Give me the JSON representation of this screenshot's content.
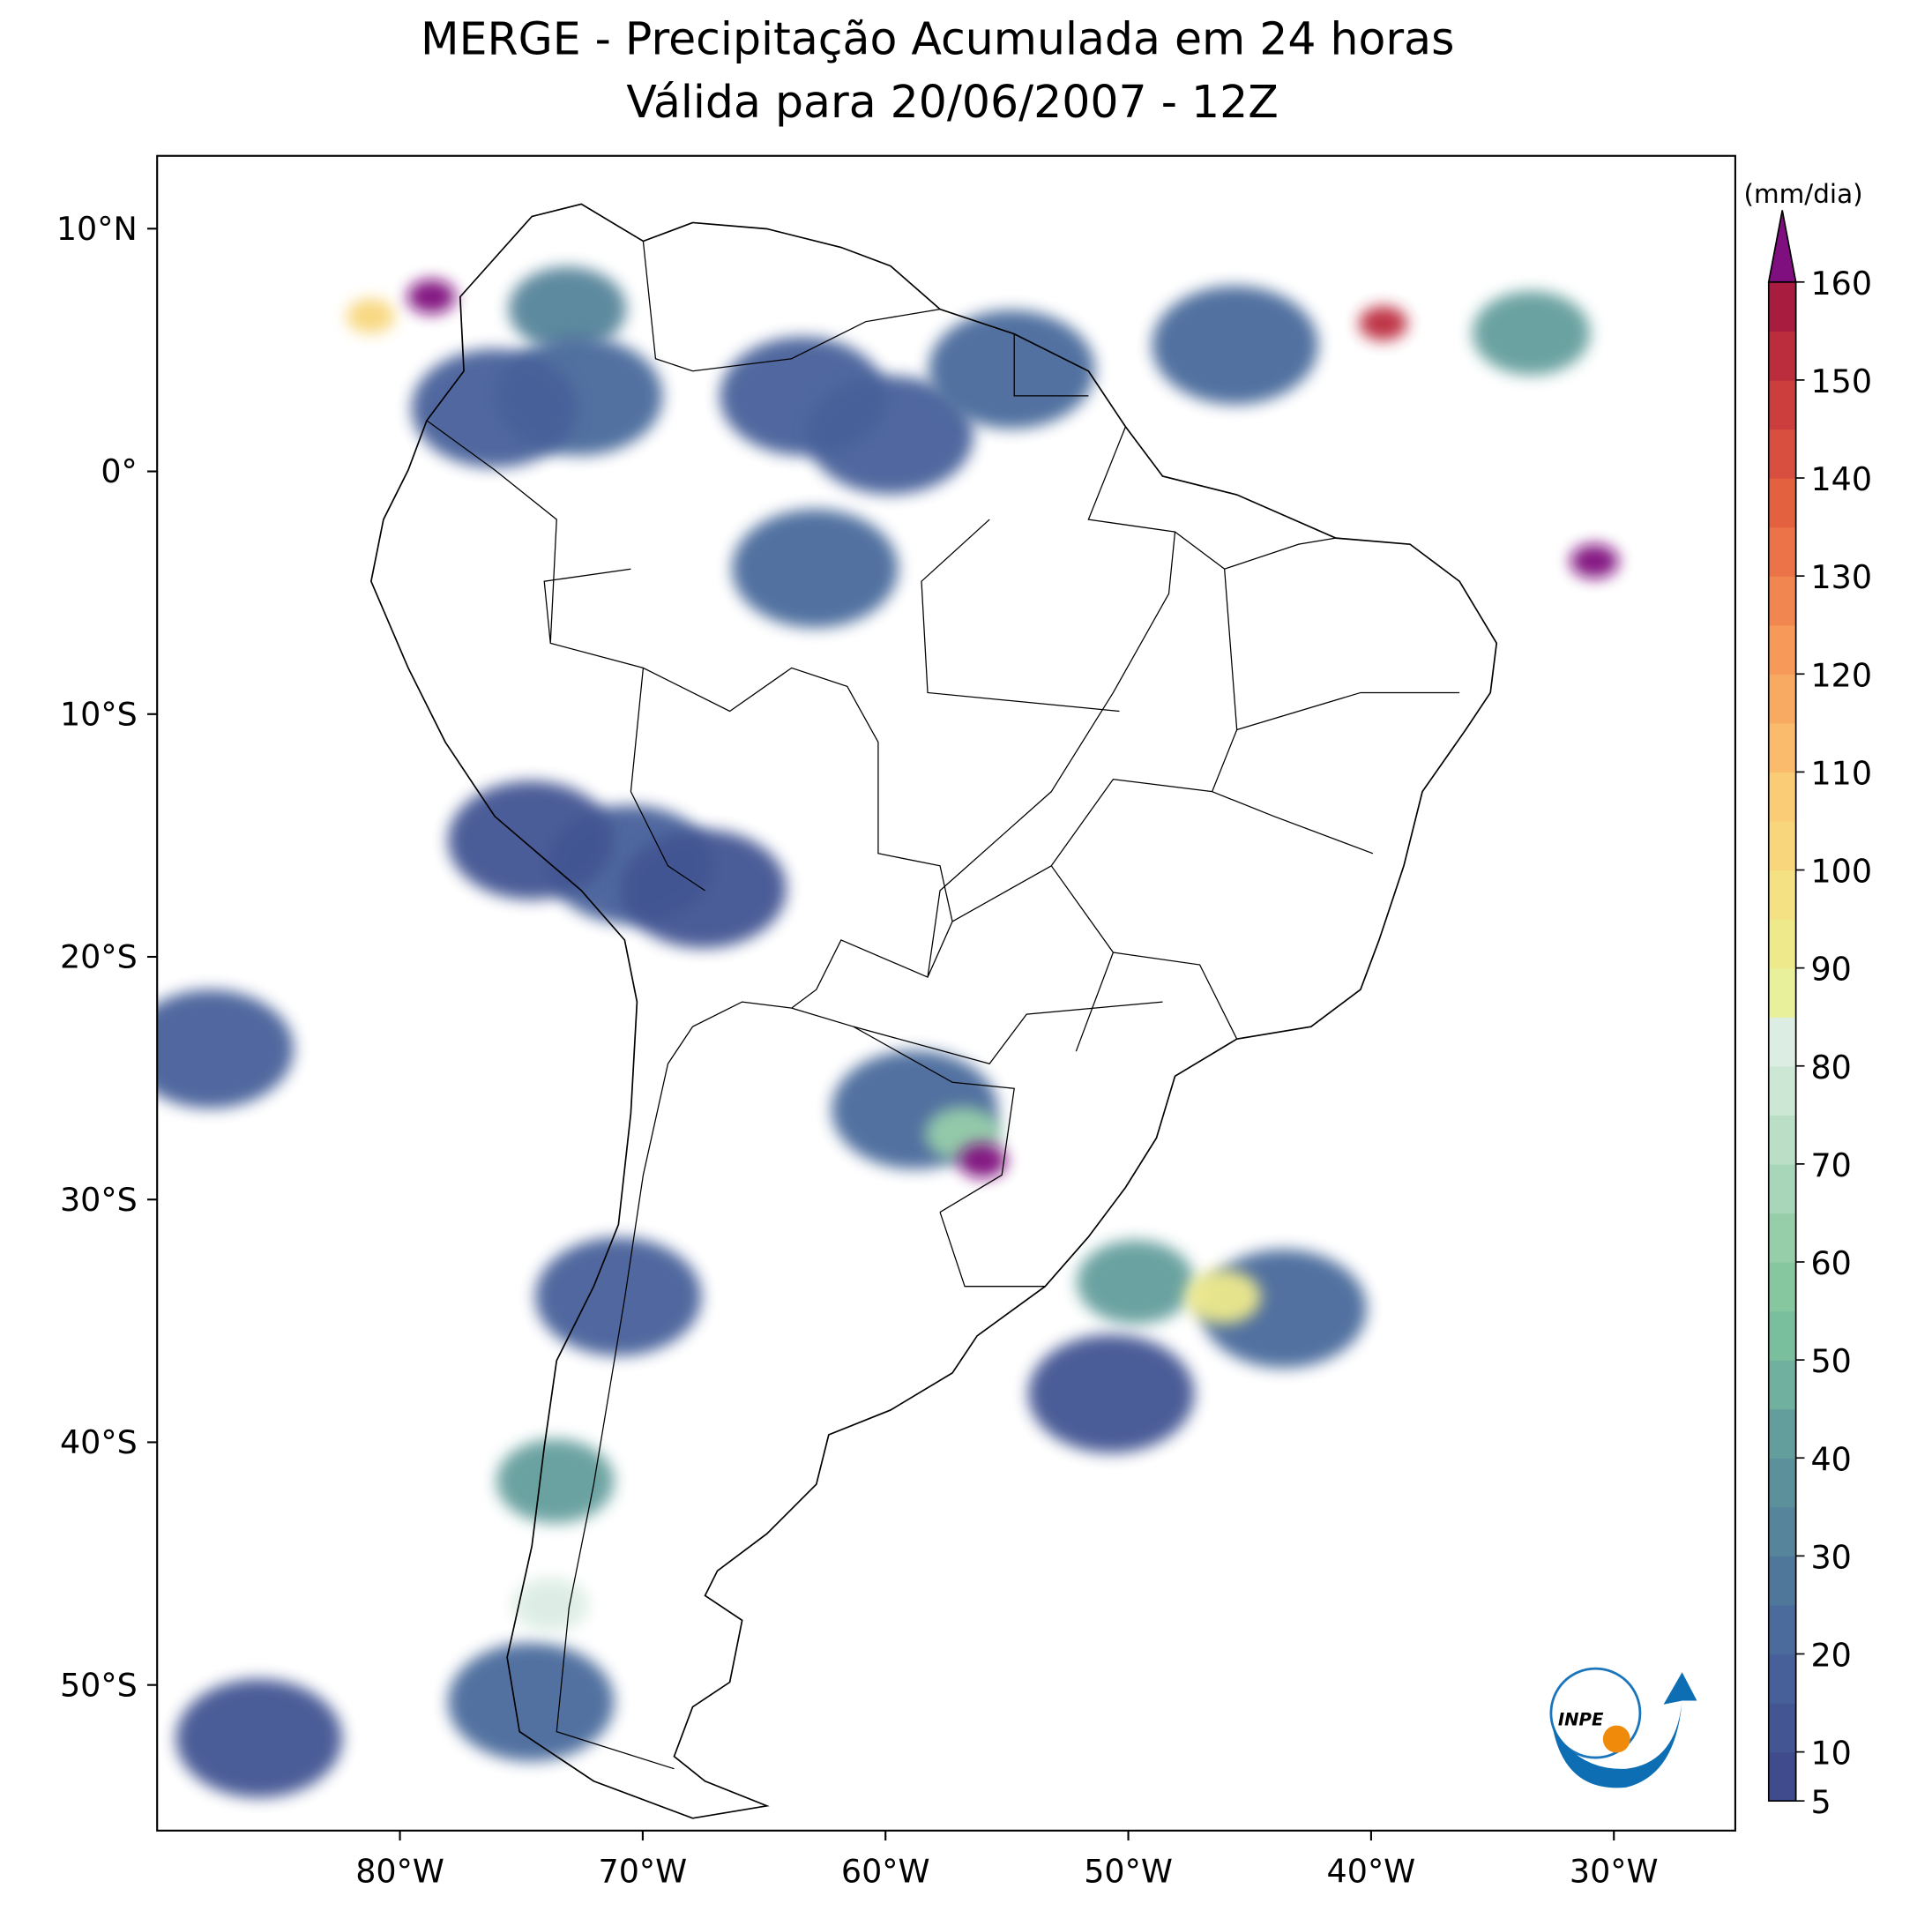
{
  "map": {
    "title": "MERGE - Precipitação Acumulada em 24 horas",
    "subtitle": "Válida para 20/06/2007 - 12Z",
    "xlim": [
      -90,
      -25
    ],
    "ylim": [
      -56,
      13
    ],
    "xticks": [
      {
        "value": -80,
        "label": "80°W"
      },
      {
        "value": -70,
        "label": "70°W"
      },
      {
        "value": -60,
        "label": "60°W"
      },
      {
        "value": -50,
        "label": "50°W"
      },
      {
        "value": -40,
        "label": "40°W"
      },
      {
        "value": -30,
        "label": "30°W"
      }
    ],
    "yticks": [
      {
        "value": 10,
        "label": "10°N"
      },
      {
        "value": 0,
        "label": "0°"
      },
      {
        "value": -10,
        "label": "10°S"
      },
      {
        "value": -20,
        "label": "20°S"
      },
      {
        "value": -30,
        "label": "30°S"
      },
      {
        "value": -40,
        "label": "40°S"
      },
      {
        "value": -50,
        "label": "50°S"
      }
    ],
    "colorbar": {
      "label": "(mm/dia)",
      "lim": [
        5,
        160
      ],
      "ticks": [
        5,
        10,
        20,
        30,
        40,
        50,
        60,
        70,
        80,
        90,
        100,
        110,
        120,
        130,
        140,
        150,
        160
      ],
      "colors": [
        "#3f4b8c",
        "#435593",
        "#47609a",
        "#4a6b9b",
        "#4f779a",
        "#56849a",
        "#5c919b",
        "#639e9c",
        "#6fb09e",
        "#79bf9d",
        "#86c79f",
        "#97ceaa",
        "#a8d6b8",
        "#bbdfc6",
        "#cde7d5",
        "#dcede4",
        "#e8f09b",
        "#eeea8c",
        "#f3e184",
        "#f8d67c",
        "#fbcc76",
        "#fbbb6c",
        "#f9aa62",
        "#f69959",
        "#f28650",
        "#ec7348",
        "#e4613f",
        "#d84f3f",
        "#cc3e3d",
        "#bb2c3d",
        "#a81c40"
      ],
      "extend_color": "#7f0f7e"
    },
    "cells": [
      {
        "lon": -73.1,
        "lat": 6.7,
        "value": 30
      },
      {
        "lon": -72.6,
        "lat": 3.1,
        "value": 20
      },
      {
        "lon": -76.1,
        "lat": 2.6,
        "value": 15
      },
      {
        "lon": -63.4,
        "lat": 3.1,
        "value": 15
      },
      {
        "lon": -59.8,
        "lat": 1.5,
        "value": 15
      },
      {
        "lon": -54.8,
        "lat": 4.2,
        "value": 20
      },
      {
        "lon": -62.9,
        "lat": -4.0,
        "value": 20
      },
      {
        "lon": -45.6,
        "lat": 5.2,
        "value": 20
      },
      {
        "lon": -70.5,
        "lat": -16.2,
        "value": 15
      },
      {
        "lon": -74.6,
        "lat": -15.2,
        "value": 10
      },
      {
        "lon": -67.5,
        "lat": -17.2,
        "value": 10
      },
      {
        "lon": -58.8,
        "lat": -26.3,
        "value": 20
      },
      {
        "lon": -49.7,
        "lat": -33.4,
        "value": 40
      },
      {
        "lon": -43.6,
        "lat": -34.5,
        "value": 20
      },
      {
        "lon": -50.7,
        "lat": -38.0,
        "value": 10
      },
      {
        "lon": -73.6,
        "lat": -41.6,
        "value": 40
      },
      {
        "lon": -74.6,
        "lat": -50.7,
        "value": 20
      },
      {
        "lon": -87.8,
        "lat": -23.8,
        "value": 15
      },
      {
        "lon": -85.8,
        "lat": -52.2,
        "value": 10
      },
      {
        "lon": -71.0,
        "lat": -34.0,
        "value": 15
      },
      {
        "lon": -33.4,
        "lat": 5.7,
        "value": 40
      },
      {
        "lon": -81.2,
        "lat": 6.4,
        "value": 100
      },
      {
        "lon": -78.7,
        "lat": 7.2,
        "value": 160
      },
      {
        "lon": -39.5,
        "lat": 6.1,
        "value": 150
      },
      {
        "lon": -30.8,
        "lat": -3.7,
        "value": 160
      },
      {
        "lon": -56.8,
        "lat": -27.3,
        "value": 60
      },
      {
        "lon": -56.0,
        "lat": -28.4,
        "value": 160
      },
      {
        "lon": -46.1,
        "lat": -34.0,
        "value": 90
      },
      {
        "lon": -73.8,
        "lat": -46.7,
        "value": 80
      }
    ],
    "logo_text": "INPE"
  }
}
